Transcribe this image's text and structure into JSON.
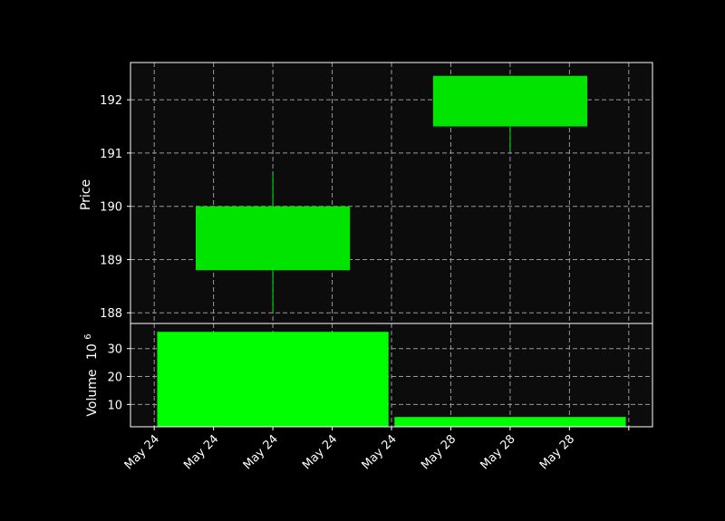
{
  "chart_data": {
    "type": "candlestick",
    "background_color": "#000000",
    "panel_color": "#0c0c0c",
    "grid": true,
    "price_panel": {
      "ylabel": "Price",
      "ylim": [
        187.8,
        192.7
      ],
      "yticks": [
        188,
        189,
        190,
        191,
        192
      ],
      "candles": [
        {
          "x": 2.0,
          "open": 188.8,
          "high": 190.6,
          "low": 188.0,
          "close": 190.0,
          "color": "#00e400"
        },
        {
          "x": 6.0,
          "open": 191.5,
          "high": 192.45,
          "low": 191.05,
          "close": 192.45,
          "color": "#00e400"
        }
      ]
    },
    "volume_panel": {
      "ylabel": "Volume",
      "ylabel_exponent": "10",
      "ylabel_exponent_power": "6",
      "ylim": [
        2,
        39
      ],
      "yticks": [
        10,
        20,
        30
      ],
      "bars": [
        {
          "x": 2.0,
          "value": 36,
          "color": "#00ff00"
        },
        {
          "x": 6.0,
          "value": 5.5,
          "color": "#00ff00"
        }
      ]
    },
    "xaxis": {
      "ticks": [
        0,
        1,
        2,
        3,
        4,
        5,
        6,
        7,
        8
      ],
      "tick_labels": [
        "May 24",
        "May 24",
        "May 24",
        "May 24",
        "May 24",
        "May 28",
        "May 28",
        "May 28",
        ""
      ],
      "xlim": [
        -0.4,
        8.4
      ]
    }
  }
}
